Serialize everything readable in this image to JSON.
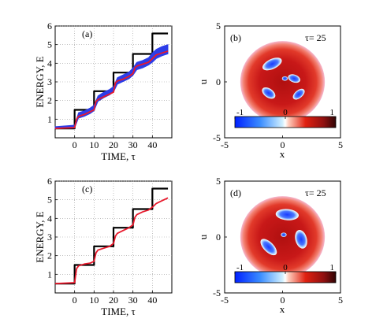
{
  "chart_data": [
    {
      "type": "line",
      "panel_label": "(a)",
      "xlabel": "TIME,  τ",
      "ylabel": "ENERGY, E",
      "xlim": [
        -10,
        50
      ],
      "ylim": [
        0,
        6
      ],
      "xticks": [
        0,
        10,
        20,
        30,
        40
      ],
      "yticks": [
        1,
        2,
        3,
        4,
        5,
        6
      ],
      "grid": true,
      "series": [
        {
          "color": "#000000",
          "x": [
            -10,
            0,
            0,
            10,
            10,
            20,
            20,
            30,
            30,
            40,
            40,
            48
          ],
          "y": [
            0.5,
            0.5,
            1.5,
            1.5,
            2.5,
            2.5,
            3.5,
            3.5,
            4.5,
            4.5,
            5.6,
            5.6
          ]
        },
        {
          "color": "#2c3de8",
          "band": true,
          "x": [
            -10,
            0,
            2,
            5,
            8,
            10,
            12,
            15,
            18,
            20,
            22,
            25,
            28,
            30,
            32,
            35,
            38,
            40,
            42,
            45,
            48
          ],
          "y": [
            0.55,
            0.6,
            1.2,
            1.3,
            1.45,
            1.6,
            2.1,
            2.3,
            2.45,
            2.6,
            3.05,
            3.2,
            3.35,
            3.55,
            3.85,
            3.95,
            4.1,
            4.3,
            4.5,
            4.65,
            4.75
          ],
          "spread": [
            0.05,
            0.08,
            0.15,
            0.15,
            0.15,
            0.15,
            0.15,
            0.15,
            0.15,
            0.15,
            0.18,
            0.18,
            0.18,
            0.2,
            0.2,
            0.2,
            0.2,
            0.25,
            0.25,
            0.25,
            0.25
          ]
        },
        {
          "color": "#e8192c",
          "x": [
            -10,
            0,
            1,
            2,
            5,
            8,
            10,
            11,
            12,
            15,
            18,
            20,
            21,
            22,
            25,
            28,
            30,
            31,
            32,
            35,
            38,
            40,
            42,
            45,
            48
          ],
          "y": [
            0.5,
            0.55,
            1.0,
            1.15,
            1.25,
            1.4,
            1.5,
            1.95,
            2.05,
            2.2,
            2.35,
            2.45,
            2.95,
            3.05,
            3.15,
            3.3,
            3.45,
            3.75,
            3.85,
            3.95,
            4.05,
            4.25,
            4.45,
            4.55,
            4.65
          ]
        }
      ]
    },
    {
      "type": "heatmap",
      "panel_label": "(b)",
      "annotation": "τ= 25",
      "xlabel": "x",
      "ylabel": "u",
      "xlim": [
        -5,
        5
      ],
      "ylim": [
        -5,
        5
      ],
      "xticks": [
        -5,
        0,
        5
      ],
      "yticks": [
        -5,
        0,
        5
      ],
      "colorbar": {
        "min": -1,
        "max": 1,
        "ticks": [
          "-1",
          "0",
          "1"
        ]
      },
      "blobs": [
        {
          "x": -0.9,
          "y": 1.6,
          "rx": 0.9,
          "ry": 0.45,
          "rot": -25
        },
        {
          "x": 1.0,
          "y": 0.3,
          "rx": 0.55,
          "ry": 0.35,
          "rot": 20
        },
        {
          "x": 0.2,
          "y": 0.3,
          "rx": 0.25,
          "ry": 0.2,
          "rot": 0
        },
        {
          "x": -1.2,
          "y": -1.0,
          "rx": 0.65,
          "ry": 0.4,
          "rot": 35
        },
        {
          "x": 1.4,
          "y": -1.1,
          "rx": 0.6,
          "ry": 0.35,
          "rot": -40
        }
      ]
    },
    {
      "type": "line",
      "panel_label": "(c)",
      "xlabel": "TIME,  τ",
      "ylabel": "ENERGY, E",
      "xlim": [
        -10,
        50
      ],
      "ylim": [
        0,
        6
      ],
      "xticks": [
        0,
        10,
        20,
        30,
        40
      ],
      "yticks": [
        1,
        2,
        3,
        4,
        5,
        6
      ],
      "grid": true,
      "series": [
        {
          "color": "#000000",
          "x": [
            -10,
            0,
            0,
            10,
            10,
            20,
            20,
            30,
            30,
            40,
            40,
            48
          ],
          "y": [
            0.5,
            0.5,
            1.5,
            1.5,
            2.5,
            2.5,
            3.5,
            3.5,
            4.5,
            4.5,
            5.6,
            5.6
          ]
        },
        {
          "color": "#e8192c",
          "x": [
            -10,
            0,
            1,
            2,
            5,
            8,
            10,
            11,
            12,
            15,
            18,
            20,
            21,
            22,
            25,
            28,
            30,
            31,
            32,
            35,
            38,
            40,
            42,
            45,
            48
          ],
          "y": [
            0.5,
            0.55,
            1.3,
            1.45,
            1.55,
            1.6,
            1.7,
            2.15,
            2.3,
            2.4,
            2.5,
            2.65,
            3.05,
            3.2,
            3.35,
            3.5,
            3.65,
            4.05,
            4.2,
            4.35,
            4.45,
            4.6,
            4.8,
            4.95,
            5.1
          ]
        }
      ]
    },
    {
      "type": "heatmap",
      "panel_label": "(d)",
      "annotation": "τ= 25",
      "xlabel": "x",
      "ylabel": "u",
      "xlim": [
        -5,
        5
      ],
      "ylim": [
        -5,
        5
      ],
      "xticks": [
        -5,
        0,
        5
      ],
      "yticks": [
        -5,
        0,
        5
      ],
      "colorbar": {
        "min": -1,
        "max": 1,
        "ticks": [
          "-1",
          "0",
          "1"
        ]
      },
      "blobs": [
        {
          "x": 0.4,
          "y": 2.0,
          "rx": 1.0,
          "ry": 0.5,
          "rot": 5
        },
        {
          "x": 1.6,
          "y": -0.2,
          "rx": 0.5,
          "ry": 0.85,
          "rot": -15
        },
        {
          "x": -1.2,
          "y": -0.9,
          "rx": 0.9,
          "ry": 0.45,
          "rot": 45
        },
        {
          "x": 0.1,
          "y": 0.2,
          "rx": 0.25,
          "ry": 0.2,
          "rot": 0
        }
      ]
    }
  ]
}
